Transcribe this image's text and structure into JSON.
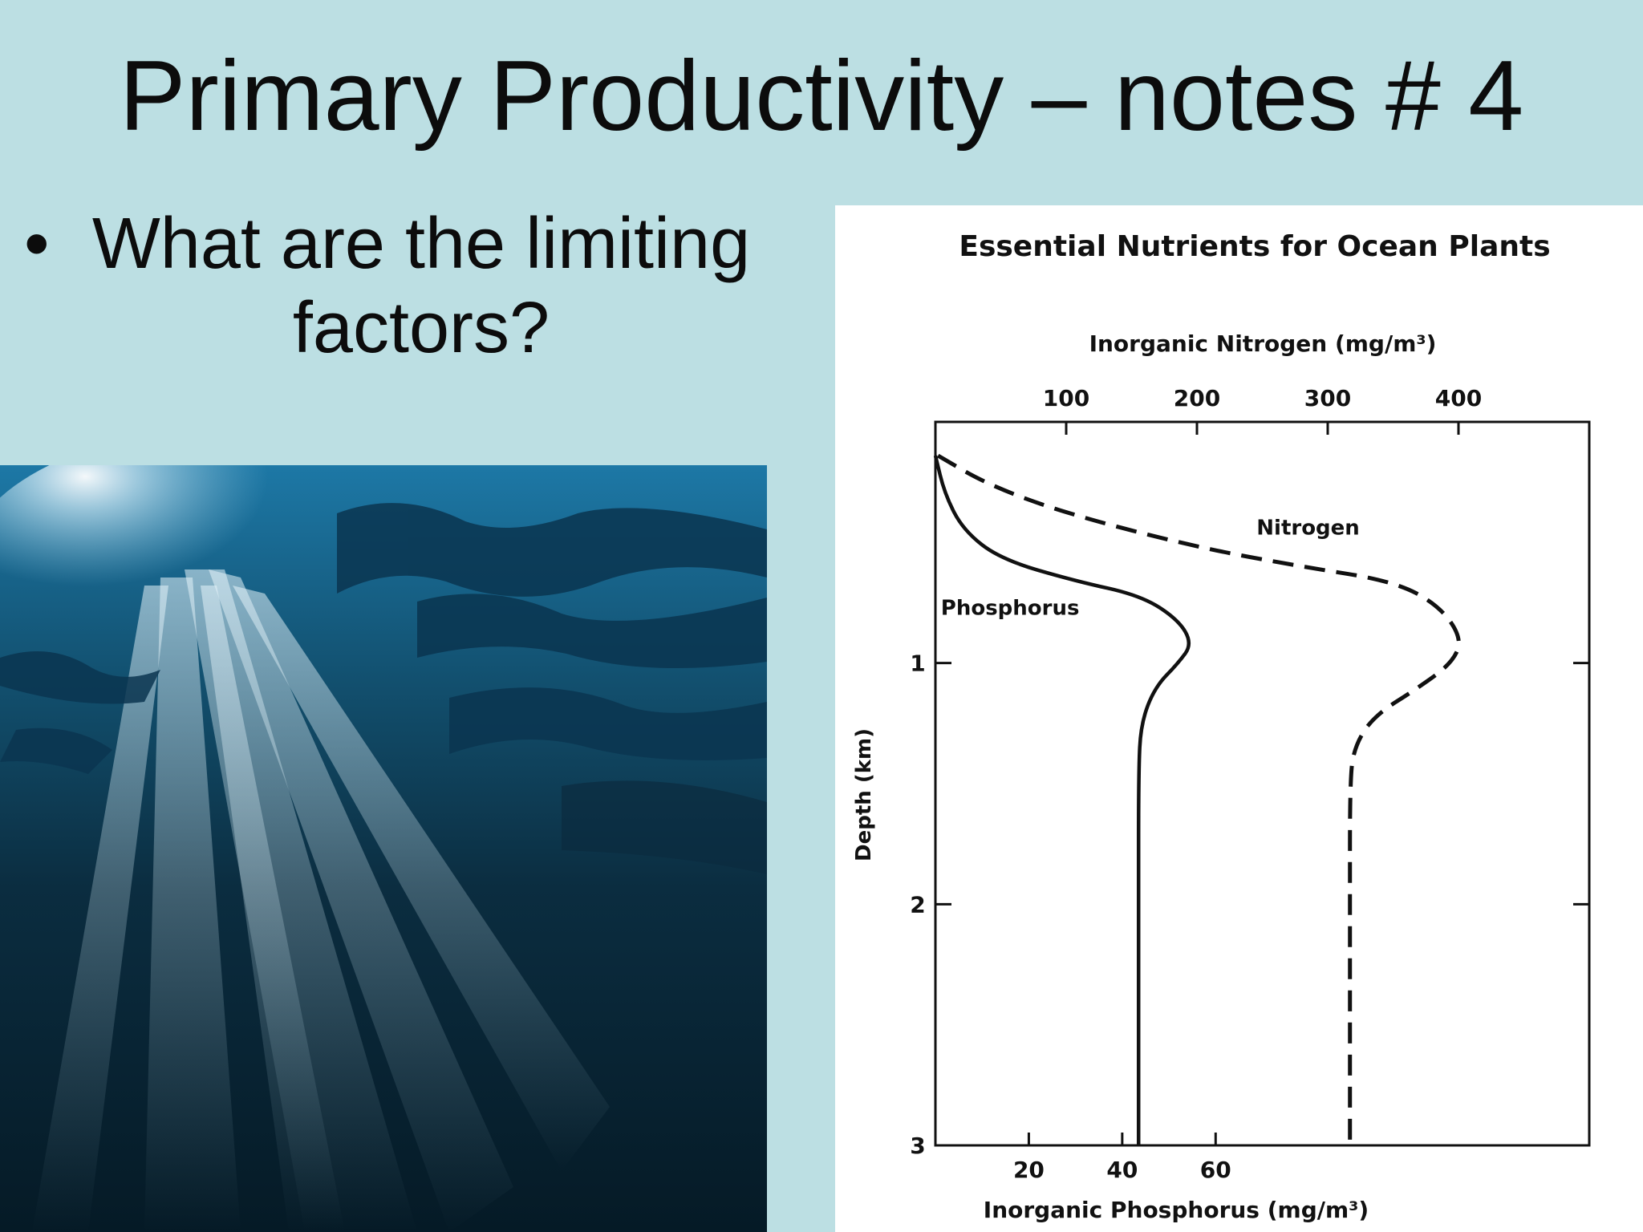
{
  "slide": {
    "title": "Primary Productivity – notes # 4",
    "bullet": "What are the limiting factors?",
    "bullet_marker": "•"
  },
  "colors": {
    "background": "#bcdfe3",
    "ink": "#111111",
    "water_deep": "#051a26",
    "water_surface": "#1d78a6"
  },
  "chart_data": {
    "type": "line",
    "title": "Essential Nutrients for Ocean Plants",
    "x_top": {
      "label": "Inorganic Nitrogen (mg/m³)",
      "ticks": [
        100,
        200,
        300,
        400
      ],
      "range": [
        0,
        500
      ]
    },
    "x_bottom": {
      "label": "Inorganic Phosphorus (mg/m³)",
      "ticks": [
        20,
        40,
        60
      ],
      "range": [
        0,
        140
      ]
    },
    "y": {
      "label": "Depth (km)",
      "ticks": [
        1,
        2,
        3
      ],
      "range": [
        0,
        3
      ],
      "inverted": true
    },
    "grid": false,
    "legend": "inline labels",
    "series": [
      {
        "name": "Phosphorus",
        "axis": "bottom",
        "style": "solid",
        "points": [
          [
            0,
            0.14
          ],
          [
            2,
            0.3
          ],
          [
            6,
            0.45
          ],
          [
            14,
            0.57
          ],
          [
            30,
            0.66
          ],
          [
            44,
            0.72
          ],
          [
            52,
            0.82
          ],
          [
            55,
            0.92
          ],
          [
            52,
            1.0
          ],
          [
            47,
            1.1
          ],
          [
            44,
            1.25
          ],
          [
            43.5,
            1.45
          ],
          [
            43.5,
            2.0
          ],
          [
            43.5,
            3.0
          ]
        ]
      },
      {
        "name": "Nitrogen",
        "axis": "top",
        "style": "dashed",
        "points": [
          [
            2,
            0.14
          ],
          [
            40,
            0.26
          ],
          [
            100,
            0.38
          ],
          [
            200,
            0.52
          ],
          [
            280,
            0.6
          ],
          [
            350,
            0.66
          ],
          [
            385,
            0.76
          ],
          [
            403,
            0.9
          ],
          [
            395,
            1.0
          ],
          [
            370,
            1.1
          ],
          [
            335,
            1.22
          ],
          [
            320,
            1.35
          ],
          [
            317,
            1.5
          ],
          [
            317,
            2.0
          ],
          [
            317,
            3.0
          ]
        ]
      }
    ]
  }
}
